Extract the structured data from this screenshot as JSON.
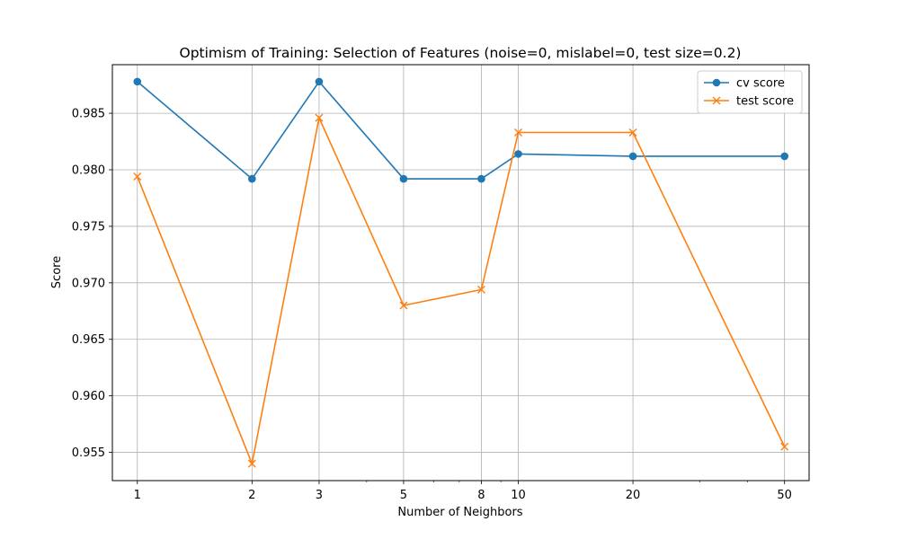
{
  "chart_data": {
    "type": "line",
    "title": "Optimism of Training: Selection of Features (noise=0, mislabel=0, test size=0.2)",
    "xlabel": "Number of Neighbors",
    "ylabel": "Score",
    "xscale": "log",
    "x": [
      1,
      2,
      3,
      5,
      8,
      10,
      20,
      50
    ],
    "xticks": [
      "1",
      "2",
      "3",
      "5",
      "8",
      "10",
      "20",
      "50"
    ],
    "xlim": [
      0.86,
      58
    ],
    "ylim": [
      0.9525,
      0.9893
    ],
    "yticks": [
      "0.955",
      "0.960",
      "0.965",
      "0.970",
      "0.975",
      "0.980",
      "0.985"
    ],
    "grid": true,
    "legend_position": "top-right",
    "series": [
      {
        "name": "cv score",
        "marker": "circle",
        "color": "#1f77b4",
        "values": [
          0.9878,
          0.9792,
          0.9878,
          0.9792,
          0.9792,
          0.9814,
          0.9812,
          0.9812
        ]
      },
      {
        "name": "test score",
        "marker": "x",
        "color": "#ff7f0e",
        "values": [
          0.9794,
          0.954,
          0.9846,
          0.968,
          0.9694,
          0.9833,
          0.9833,
          0.9555
        ]
      }
    ]
  }
}
